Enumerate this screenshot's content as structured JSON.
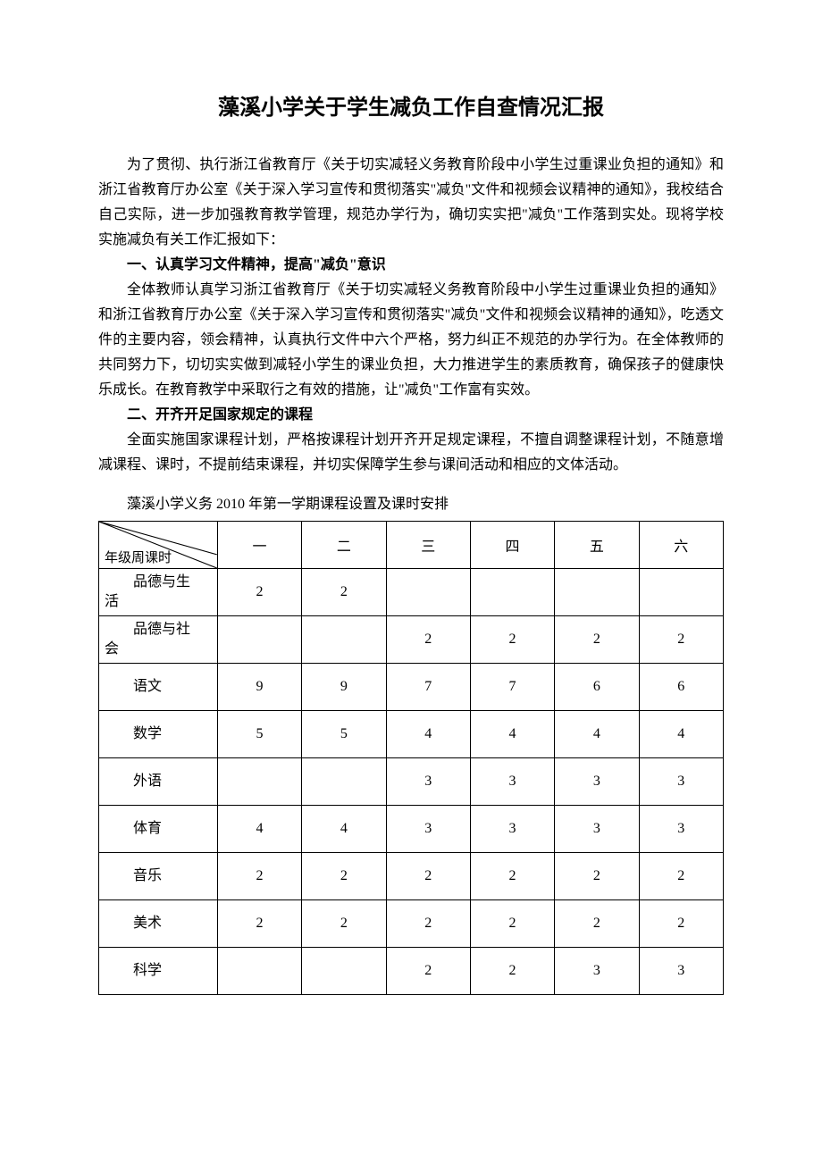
{
  "title": "藻溪小学关于学生减负工作自查情况汇报",
  "para1": "为了贯彻、执行浙江省教育厅《关于切实减轻义务教育阶段中小学生过重课业负担的通知》和浙江省教育厅办公室《关于深入学习宣传和贯彻落实\"减负\"文件和视频会议精神的通知》，我校结合自己实际，进一步加强教育教学管理，规范办学行为，确切实实把\"减负\"工作落到实处。现将学校实施减负有关工作汇报如下：",
  "h1": "一、认真学习文件精神，提高\"减负\"意识",
  "para2": "全体教师认真学习浙江省教育厅《关于切实减轻义务教育阶段中小学生过重课业负担的通知》和浙江省教育厅办公室《关于深入学习宣传和贯彻落实\"减负\"文件和视频会议精神的通知》，吃透文件的主要内容，领会精神，认真执行文件中六个严格，努力纠正不规范的办学行为。在全体教师的共同努力下，切切实实做到减轻小学生的课业负担，大力推进学生的素质教育，确保孩子的健康快乐成长。在教育教学中采取行之有效的措施，让\"减负\"工作富有实效。",
  "h2": "二、开齐开足国家规定的课程",
  "para3": "全面实施国家课程计划，严格按课程计划开齐开足规定课程，不擅自调整课程计划，不随意增减课程、课时，不提前结束课程，并切实保障学生参与课间活动和相应的文体活动。",
  "table_caption": "藻溪小学义务 2010 年第一学期课程设置及课时安排",
  "table": {
    "corner_label": "年级周课时",
    "grade_headers": [
      "一",
      "二",
      "三",
      "四",
      "五",
      "六"
    ],
    "rows": [
      {
        "subject_parts": [
          "品德与生",
          "活"
        ],
        "subject_single": null,
        "cells": [
          "2",
          "2",
          "",
          "",
          "",
          ""
        ]
      },
      {
        "subject_parts": [
          "品德与社",
          "会"
        ],
        "subject_single": null,
        "cells": [
          "",
          "",
          "2",
          "2",
          "2",
          "2"
        ]
      },
      {
        "subject_parts": null,
        "subject_single": "语文",
        "cells": [
          "9",
          "9",
          "7",
          "7",
          "6",
          "6"
        ]
      },
      {
        "subject_parts": null,
        "subject_single": "数学",
        "cells": [
          "5",
          "5",
          "4",
          "4",
          "4",
          "4"
        ]
      },
      {
        "subject_parts": null,
        "subject_single": "外语",
        "cells": [
          "",
          "",
          "3",
          "3",
          "3",
          "3"
        ]
      },
      {
        "subject_parts": null,
        "subject_single": "体育",
        "cells": [
          "4",
          "4",
          "3",
          "3",
          "3",
          "3"
        ]
      },
      {
        "subject_parts": null,
        "subject_single": "音乐",
        "cells": [
          "2",
          "2",
          "2",
          "2",
          "2",
          "2"
        ]
      },
      {
        "subject_parts": null,
        "subject_single": "美术",
        "cells": [
          "2",
          "2",
          "2",
          "2",
          "2",
          "2"
        ]
      },
      {
        "subject_parts": null,
        "subject_single": "科学",
        "cells": [
          "",
          "",
          "2",
          "2",
          "3",
          "3"
        ]
      }
    ],
    "border_color": "#000000",
    "background_color": "#ffffff",
    "font_size": 16
  }
}
